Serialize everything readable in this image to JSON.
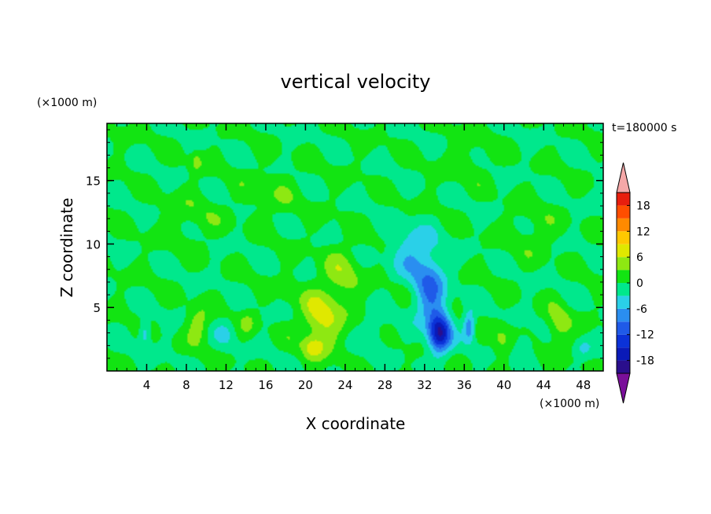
{
  "chart_data": {
    "type": "heatmap",
    "title": "vertical velocity",
    "xlabel": "X coordinate",
    "ylabel": "Z coordinate",
    "x_unit": "(×1000 m)",
    "y_unit": "(×1000 m)",
    "time_label": "t=180000 s",
    "xlim": [
      0,
      50
    ],
    "ylim": [
      0,
      19.5
    ],
    "x_ticks": [
      4,
      8,
      12,
      16,
      20,
      24,
      28,
      32,
      36,
      40,
      44,
      48
    ],
    "y_ticks": [
      5,
      10,
      15
    ],
    "colorbar": {
      "levels": [
        -21,
        -18,
        -15,
        -12,
        -9,
        -6,
        -3,
        0,
        3,
        6,
        9,
        12,
        15,
        18,
        21
      ],
      "tick_labels": [
        "18",
        "12",
        "6",
        "0",
        "-6",
        "-12",
        "-18"
      ],
      "tick_values": [
        18,
        12,
        6,
        0,
        -6,
        -12,
        -18
      ],
      "colors": [
        "#7a0f9a",
        "#2a0e8c",
        "#0a1ab8",
        "#0b32d8",
        "#1f5ae8",
        "#2a8ef0",
        "#2ad0e8",
        "#00e88c",
        "#12e412",
        "#8ee812",
        "#e0e800",
        "#ffc800",
        "#ff8a00",
        "#ff4e00",
        "#e81e0e",
        "#f5a8a8"
      ]
    },
    "background_value": 0,
    "features": [
      {
        "x": 21.5,
        "z": 4.0,
        "sx": 2.0,
        "sz": 2.5,
        "w": 7
      },
      {
        "x": 23.8,
        "z": 7.5,
        "sx": 1.8,
        "sz": 2.5,
        "w": 4
      },
      {
        "x": 20.8,
        "z": 1.8,
        "sx": 1.0,
        "sz": 0.8,
        "w": 5
      },
      {
        "x": 9.2,
        "z": 3.6,
        "sx": 1.1,
        "sz": 1.4,
        "w": 5
      },
      {
        "x": 14.2,
        "z": 3.8,
        "sx": 0.8,
        "sz": 1.0,
        "w": 3
      },
      {
        "x": 45.5,
        "z": 3.5,
        "sx": 1.2,
        "sz": 1.5,
        "w": 5
      },
      {
        "x": 39.8,
        "z": 2.5,
        "sx": 1.0,
        "sz": 1.3,
        "w": 4
      },
      {
        "x": 18.2,
        "z": 6.5,
        "sx": 0.8,
        "sz": 1.2,
        "w": 2
      },
      {
        "x": 33.5,
        "z": 3.0,
        "sx": 1.1,
        "sz": 1.6,
        "w": -17
      },
      {
        "x": 32.5,
        "z": 6.5,
        "sx": 1.6,
        "sz": 2.8,
        "w": -9
      },
      {
        "x": 30.5,
        "z": 9.5,
        "sx": 2.0,
        "sz": 2.0,
        "w": -5
      },
      {
        "x": 36.5,
        "z": 3.5,
        "sx": 0.6,
        "sz": 1.2,
        "w": -9
      },
      {
        "x": 3.8,
        "z": 3.0,
        "sx": 0.6,
        "sz": 1.0,
        "w": -6
      },
      {
        "x": 27.0,
        "z": 3.0,
        "sx": 1.2,
        "sz": 1.6,
        "w": -3
      },
      {
        "x": 12.0,
        "z": 3.0,
        "sx": 1.0,
        "sz": 1.2,
        "w": -3
      },
      {
        "x": 42.0,
        "z": 2.0,
        "sx": 1.0,
        "sz": 1.0,
        "w": -4
      },
      {
        "x": 48.0,
        "z": 1.8,
        "sx": 0.8,
        "sz": 0.8,
        "w": -3
      },
      {
        "x": 16.5,
        "z": 14.0,
        "sx": 3.0,
        "sz": 2.0,
        "w": 2
      },
      {
        "x": 36.5,
        "z": 16.5,
        "sx": 2.5,
        "sz": 1.5,
        "w": 2
      },
      {
        "x": 8.5,
        "z": 12.0,
        "sx": 3.0,
        "sz": 2.0,
        "w": 2
      },
      {
        "x": 9.0,
        "z": 16.5,
        "sx": 0.6,
        "sz": 0.8,
        "w": 4
      },
      {
        "x": 43.0,
        "z": 11.0,
        "sx": 2.5,
        "sz": 2.0,
        "w": 2
      }
    ]
  }
}
